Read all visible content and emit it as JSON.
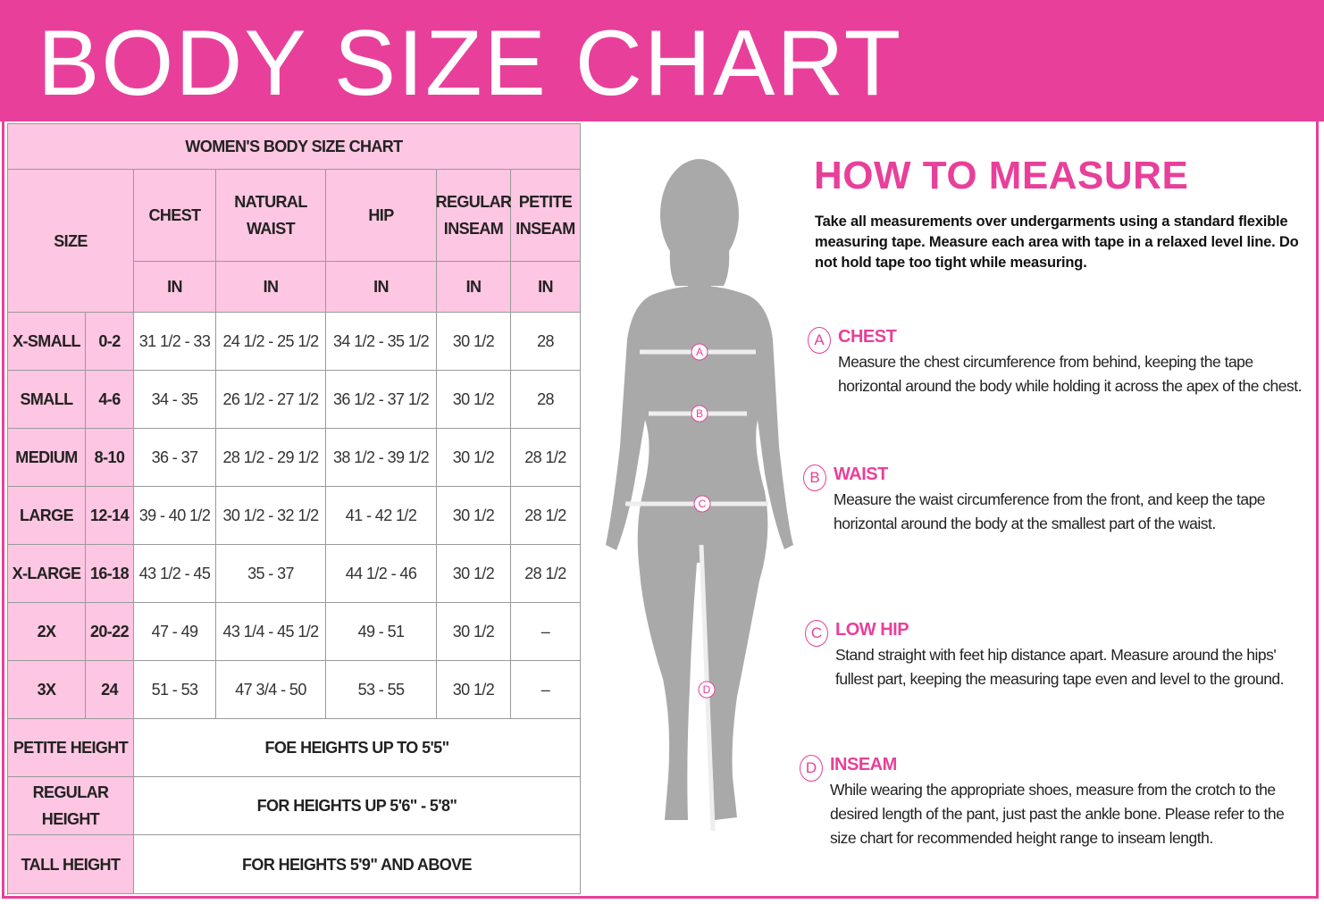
{
  "header": {
    "title": "BODY SIZE CHART"
  },
  "table": {
    "caption": "WOMEN'S BODY SIZE CHART",
    "size_header": "SIZE",
    "columns": [
      "CHEST",
      "NATURAL WAIST",
      "HIP",
      "REGULAR INSEAM",
      "PETITE INSEAM"
    ],
    "units": [
      "IN",
      "IN",
      "IN",
      "IN",
      "IN"
    ],
    "rows": [
      [
        "X-SMALL",
        "0-2",
        "31 1/2 - 33",
        "24 1/2 - 25 1/2",
        "34 1/2 - 35 1/2",
        "30 1/2",
        "28"
      ],
      [
        "SMALL",
        "4-6",
        "34 - 35",
        "26 1/2 - 27 1/2",
        "36 1/2 - 37 1/2",
        "30 1/2",
        "28"
      ],
      [
        "MEDIUM",
        "8-10",
        "36 - 37",
        "28 1/2 - 29 1/2",
        "38 1/2 - 39 1/2",
        "30 1/2",
        "28 1/2"
      ],
      [
        "LARGE",
        "12-14",
        "39 - 40 1/2",
        "30 1/2 - 32 1/2",
        "41 - 42 1/2",
        "30 1/2",
        "28 1/2"
      ],
      [
        "X-LARGE",
        "16-18",
        "43 1/2 - 45",
        "35 - 37",
        "44 1/2 - 46",
        "30 1/2",
        "28 1/2"
      ],
      [
        "2X",
        "20-22",
        "47 - 49",
        "43 1/4 - 45 1/2",
        "49 - 51",
        "30 1/2",
        "–"
      ],
      [
        "3X",
        "24",
        "51 - 53",
        "47 3/4 - 50",
        "53 - 55",
        "30 1/2",
        "–"
      ]
    ],
    "height_rows": [
      [
        "PETITE HEIGHT",
        "FOE HEIGHTS UP TO 5'5\""
      ],
      [
        "REGULAR HEIGHT",
        "FOR HEIGHTS UP 5'6\" - 5'8\""
      ],
      [
        "TALL HEIGHT",
        "FOR HEIGHTS 5'9\" AND ABOVE"
      ]
    ]
  },
  "figure": {
    "markers": [
      "A",
      "B",
      "C",
      "D"
    ]
  },
  "measure": {
    "title": "HOW TO MEASURE",
    "intro": "Take all measurements over undergarments using a standard flexible measuring tape. Measure each area with tape in a relaxed level line. Do not hold tape too tight while measuring.",
    "steps": [
      {
        "letter": "A",
        "name": "CHEST",
        "text": "Measure the chest circumference from behind, keeping the tape horizontal around the body while holding it across the apex of the chest."
      },
      {
        "letter": "B",
        "name": "WAIST",
        "text": "Measure the waist circumference from the front, and keep the tape horizontal around the body at the smallest part of the waist."
      },
      {
        "letter": "C",
        "name": "LOW HIP",
        "text": "Stand straight with feet hip distance apart. Measure around the hips' fullest part, keeping the measuring tape even and level to the ground."
      },
      {
        "letter": "D",
        "name": "INSEAM",
        "text": "While wearing the appropriate shoes, measure from the crotch to the desired length of the pant, just past the ankle bone. Please refer to the size chart for recommended height range to inseam length."
      }
    ]
  }
}
